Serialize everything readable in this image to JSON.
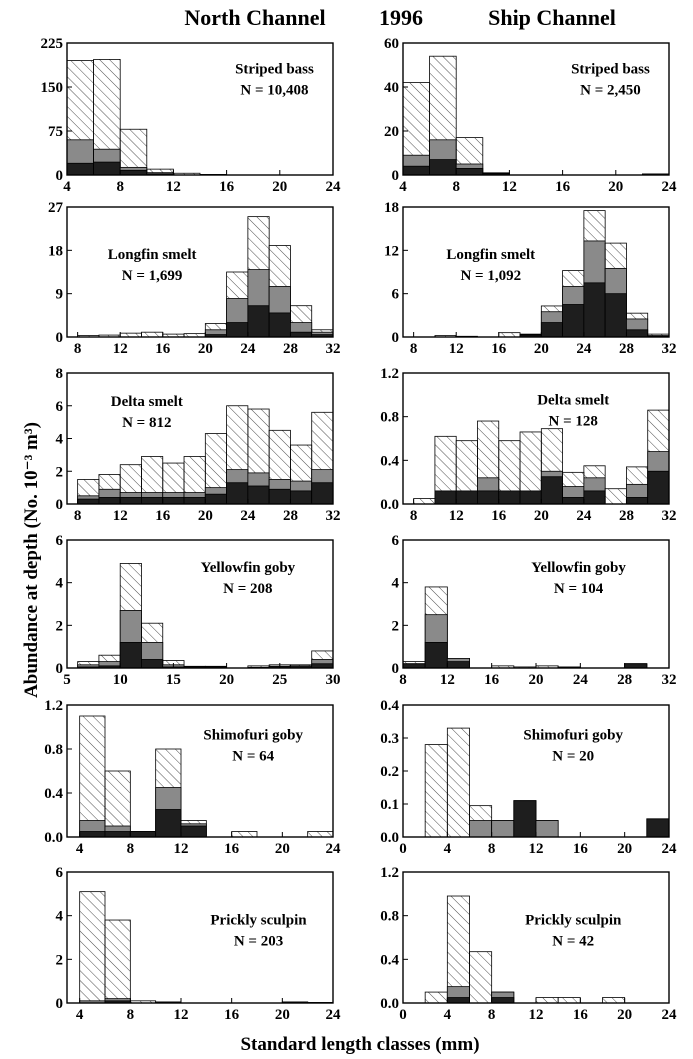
{
  "header": {
    "left": "North Channel",
    "center": "1996",
    "right": "Ship Channel"
  },
  "ylabel": "Abundance at depth (No. 10⁻³ m³)",
  "xlabel": "Standard length classes (mm)",
  "colors": {
    "hatched": "#ffffff",
    "gray": "#8a8a8a",
    "black": "#1e1e1e",
    "outline": "#000000"
  },
  "legend_note": "Stacked bars: black (bottom), gray (middle), hatched (top) segments",
  "chart_data": [
    {
      "type": "bar",
      "panel": "North Channel",
      "species": "Striped bass",
      "n_label": "N = 10,408",
      "xlim": [
        4,
        24
      ],
      "xticks": [
        4,
        8,
        12,
        16,
        20,
        24
      ],
      "ylim": [
        0,
        225
      ],
      "yticks": [
        0,
        75,
        150,
        225
      ],
      "ytick_labels": [
        "0",
        "75",
        "150",
        "225"
      ],
      "bin_width": 2,
      "bins": [
        {
          "x": 5,
          "black": 20,
          "gray": 40,
          "total": 195
        },
        {
          "x": 7,
          "black": 22,
          "gray": 22,
          "total": 197
        },
        {
          "x": 9,
          "black": 8,
          "gray": 5,
          "total": 78
        },
        {
          "x": 11,
          "black": 2,
          "gray": 2,
          "total": 10
        },
        {
          "x": 13,
          "black": 0,
          "gray": 0,
          "total": 3
        },
        {
          "x": 15,
          "black": 0,
          "gray": 0,
          "total": 1
        }
      ]
    },
    {
      "type": "bar",
      "panel": "Ship Channel",
      "species": "Striped bass",
      "n_label": "N = 2,450",
      "xlim": [
        4,
        24
      ],
      "xticks": [
        4,
        8,
        12,
        16,
        20,
        24
      ],
      "ylim": [
        0,
        60
      ],
      "yticks": [
        0,
        20,
        40,
        60
      ],
      "ytick_labels": [
        "0",
        "20",
        "40",
        "60"
      ],
      "bin_width": 2,
      "bins": [
        {
          "x": 5,
          "black": 4,
          "gray": 5,
          "total": 42
        },
        {
          "x": 7,
          "black": 7,
          "gray": 9,
          "total": 54
        },
        {
          "x": 9,
          "black": 3,
          "gray": 2,
          "total": 17
        },
        {
          "x": 11,
          "black": 0.5,
          "gray": 0.3,
          "total": 1
        },
        {
          "x": 23,
          "black": 0.5,
          "gray": 0,
          "total": 0.5
        }
      ]
    },
    {
      "type": "bar",
      "panel": "North Channel",
      "species": "Longfin smelt",
      "n_label": "N = 1,699",
      "xlim": [
        7,
        32
      ],
      "xticks": [
        8,
        12,
        16,
        20,
        24,
        28,
        32
      ],
      "ylim": [
        0,
        27
      ],
      "yticks": [
        0,
        9,
        18,
        27
      ],
      "ytick_labels": [
        "0",
        "9",
        "18",
        "27"
      ],
      "bin_width": 2,
      "bins": [
        {
          "x": 9,
          "black": 0,
          "gray": 0,
          "total": 0.3
        },
        {
          "x": 11,
          "black": 0,
          "gray": 0,
          "total": 0.4
        },
        {
          "x": 13,
          "black": 0,
          "gray": 0,
          "total": 0.8
        },
        {
          "x": 15,
          "black": 0,
          "gray": 0,
          "total": 1.0
        },
        {
          "x": 17,
          "black": 0,
          "gray": 0,
          "total": 0.6
        },
        {
          "x": 19,
          "black": 0,
          "gray": 0,
          "total": 0.7
        },
        {
          "x": 21,
          "black": 0.5,
          "gray": 1.0,
          "total": 2.8
        },
        {
          "x": 23,
          "black": 3,
          "gray": 5,
          "total": 13.5
        },
        {
          "x": 25,
          "black": 6.5,
          "gray": 7.5,
          "total": 25
        },
        {
          "x": 27,
          "black": 5,
          "gray": 5.5,
          "total": 19
        },
        {
          "x": 29,
          "black": 1,
          "gray": 2,
          "total": 6.5
        },
        {
          "x": 31,
          "black": 0.5,
          "gray": 0.5,
          "total": 1.5
        }
      ]
    },
    {
      "type": "bar",
      "panel": "Ship Channel",
      "species": "Longfin smelt",
      "n_label": "N = 1,092",
      "xlim": [
        7,
        32
      ],
      "xticks": [
        8,
        12,
        16,
        20,
        24,
        28,
        32
      ],
      "ylim": [
        0,
        18
      ],
      "yticks": [
        0,
        6,
        12,
        18
      ],
      "ytick_labels": [
        "0",
        "6",
        "12",
        "18"
      ],
      "bin_width": 2,
      "bins": [
        {
          "x": 11,
          "black": 0,
          "gray": 0,
          "total": 0.2
        },
        {
          "x": 13,
          "black": 0,
          "gray": 0,
          "total": 0.1
        },
        {
          "x": 17,
          "black": 0,
          "gray": 0,
          "total": 0.6
        },
        {
          "x": 19,
          "black": 0.2,
          "gray": 0.1,
          "total": 0.4
        },
        {
          "x": 21,
          "black": 2,
          "gray": 1.5,
          "total": 4.3
        },
        {
          "x": 23,
          "black": 4.5,
          "gray": 2.5,
          "total": 9.2
        },
        {
          "x": 25,
          "black": 7.5,
          "gray": 5.8,
          "total": 17.5
        },
        {
          "x": 27,
          "black": 6,
          "gray": 3.5,
          "total": 13
        },
        {
          "x": 29,
          "black": 1,
          "gray": 1.5,
          "total": 3.3
        },
        {
          "x": 31,
          "black": 0.1,
          "gray": 0.1,
          "total": 0.4
        }
      ]
    },
    {
      "type": "bar",
      "panel": "North Channel",
      "species": "Delta smelt",
      "n_label": "N = 812",
      "xlim": [
        7,
        32
      ],
      "xticks": [
        8,
        12,
        16,
        20,
        24,
        28,
        32
      ],
      "ylim": [
        0,
        8
      ],
      "yticks": [
        0,
        2,
        4,
        6,
        8
      ],
      "ytick_labels": [
        "0",
        "2",
        "4",
        "6",
        "8"
      ],
      "bin_width": 2,
      "bins": [
        {
          "x": 9,
          "black": 0.3,
          "gray": 0.2,
          "total": 1.5
        },
        {
          "x": 11,
          "black": 0.4,
          "gray": 0.5,
          "total": 1.8
        },
        {
          "x": 13,
          "black": 0.4,
          "gray": 0.3,
          "total": 2.4
        },
        {
          "x": 15,
          "black": 0.4,
          "gray": 0.3,
          "total": 2.9
        },
        {
          "x": 17,
          "black": 0.4,
          "gray": 0.3,
          "total": 2.5
        },
        {
          "x": 19,
          "black": 0.4,
          "gray": 0.3,
          "total": 2.9
        },
        {
          "x": 21,
          "black": 0.6,
          "gray": 0.4,
          "total": 4.3
        },
        {
          "x": 23,
          "black": 1.3,
          "gray": 0.8,
          "total": 6.0
        },
        {
          "x": 25,
          "black": 1.1,
          "gray": 0.8,
          "total": 5.8
        },
        {
          "x": 27,
          "black": 0.9,
          "gray": 0.6,
          "total": 4.5
        },
        {
          "x": 29,
          "black": 0.8,
          "gray": 0.6,
          "total": 3.6
        },
        {
          "x": 31,
          "black": 1.3,
          "gray": 0.8,
          "total": 5.6
        }
      ]
    },
    {
      "type": "bar",
      "panel": "Ship Channel",
      "species": "Delta smelt",
      "n_label": "N = 128",
      "xlim": [
        7,
        32
      ],
      "xticks": [
        8,
        12,
        16,
        20,
        24,
        28,
        32
      ],
      "ylim": [
        0,
        1.2
      ],
      "yticks": [
        0,
        0.4,
        0.8,
        1.2
      ],
      "ytick_labels": [
        "0.0",
        "0.4",
        "0.8",
        "1.2"
      ],
      "bin_width": 2,
      "bins": [
        {
          "x": 9,
          "black": 0,
          "gray": 0,
          "total": 0.05
        },
        {
          "x": 11,
          "black": 0.12,
          "gray": 0,
          "total": 0.62
        },
        {
          "x": 13,
          "black": 0.12,
          "gray": 0,
          "total": 0.58
        },
        {
          "x": 15,
          "black": 0.12,
          "gray": 0.12,
          "total": 0.76
        },
        {
          "x": 17,
          "black": 0.12,
          "gray": 0,
          "total": 0.58
        },
        {
          "x": 19,
          "black": 0.12,
          "gray": 0,
          "total": 0.66
        },
        {
          "x": 21,
          "black": 0.25,
          "gray": 0.05,
          "total": 0.69
        },
        {
          "x": 23,
          "black": 0.06,
          "gray": 0.1,
          "total": 0.29
        },
        {
          "x": 25,
          "black": 0.12,
          "gray": 0.12,
          "total": 0.35
        },
        {
          "x": 27,
          "black": 0,
          "gray": 0,
          "total": 0.14
        },
        {
          "x": 29,
          "black": 0.06,
          "gray": 0.12,
          "total": 0.34
        },
        {
          "x": 31,
          "black": 0.3,
          "gray": 0.18,
          "total": 0.86
        }
      ]
    },
    {
      "type": "bar",
      "panel": "North Channel",
      "species": "Yellowfin goby",
      "n_label": "N = 208",
      "xlim": [
        5,
        30
      ],
      "xticks": [
        5,
        10,
        15,
        20,
        25,
        30
      ],
      "ylim": [
        0,
        6
      ],
      "yticks": [
        0,
        2,
        4,
        6
      ],
      "ytick_labels": [
        "0",
        "2",
        "4",
        "6"
      ],
      "bin_width": 2,
      "bins": [
        {
          "x": 7,
          "black": 0.05,
          "gray": 0.1,
          "total": 0.3
        },
        {
          "x": 9,
          "black": 0.1,
          "gray": 0.2,
          "total": 0.6
        },
        {
          "x": 11,
          "black": 1.2,
          "gray": 1.5,
          "total": 4.9
        },
        {
          "x": 13,
          "black": 0.4,
          "gray": 0.8,
          "total": 2.1
        },
        {
          "x": 15,
          "black": 0.05,
          "gray": 0.1,
          "total": 0.35
        },
        {
          "x": 17,
          "black": 0.05,
          "gray": 0,
          "total": 0.08
        },
        {
          "x": 19,
          "black": 0.05,
          "gray": 0,
          "total": 0.08
        },
        {
          "x": 23,
          "black": 0.03,
          "gray": 0,
          "total": 0.1
        },
        {
          "x": 25,
          "black": 0.08,
          "gray": 0,
          "total": 0.15
        },
        {
          "x": 27,
          "black": 0.1,
          "gray": 0,
          "total": 0.15
        },
        {
          "x": 29,
          "black": 0.2,
          "gray": 0.2,
          "total": 0.8
        }
      ]
    },
    {
      "type": "bar",
      "panel": "Ship Channel",
      "species": "Yellowfin goby",
      "n_label": "N = 104",
      "xlim": [
        8,
        32
      ],
      "xticks": [
        8,
        12,
        16,
        20,
        24,
        28,
        32
      ],
      "ylim": [
        0,
        6
      ],
      "yticks": [
        0,
        2,
        4,
        6
      ],
      "ytick_labels": [
        "0",
        "2",
        "4",
        "6"
      ],
      "bin_width": 2,
      "bins": [
        {
          "x": 9,
          "black": 0.2,
          "gray": 0,
          "total": 0.3
        },
        {
          "x": 11,
          "black": 1.2,
          "gray": 1.3,
          "total": 3.8
        },
        {
          "x": 13,
          "black": 0.3,
          "gray": 0.15,
          "total": 0.45
        },
        {
          "x": 17,
          "black": 0,
          "gray": 0,
          "total": 0.1
        },
        {
          "x": 19,
          "black": 0,
          "gray": 0,
          "total": 0.05
        },
        {
          "x": 21,
          "black": 0,
          "gray": 0,
          "total": 0.1
        },
        {
          "x": 23,
          "black": 0.03,
          "gray": 0,
          "total": 0.05
        },
        {
          "x": 29,
          "black": 0.2,
          "gray": 0,
          "total": 0.2
        }
      ]
    },
    {
      "type": "bar",
      "panel": "North Channel",
      "species": "Shimofuri goby",
      "n_label": "N = 64",
      "xlim": [
        3,
        24
      ],
      "xticks": [
        4,
        8,
        12,
        16,
        20,
        24
      ],
      "ylim": [
        0,
        1.2
      ],
      "yticks": [
        0,
        0.4,
        0.8,
        1.2
      ],
      "ytick_labels": [
        "0.0",
        "0.4",
        "0.8",
        "1.2"
      ],
      "bin_width": 2,
      "bins": [
        {
          "x": 5,
          "black": 0.05,
          "gray": 0.1,
          "total": 1.1
        },
        {
          "x": 7,
          "black": 0.05,
          "gray": 0.05,
          "total": 0.6
        },
        {
          "x": 9,
          "black": 0.05,
          "gray": 0,
          "total": 0.05
        },
        {
          "x": 11,
          "black": 0.25,
          "gray": 0.2,
          "total": 0.8
        },
        {
          "x": 13,
          "black": 0.1,
          "gray": 0.02,
          "total": 0.15
        },
        {
          "x": 17,
          "black": 0,
          "gray": 0,
          "total": 0.05
        },
        {
          "x": 23,
          "black": 0,
          "gray": 0,
          "total": 0.05
        }
      ]
    },
    {
      "type": "bar",
      "panel": "Ship Channel",
      "species": "Shimofuri goby",
      "n_label": "N = 20",
      "xlim": [
        0,
        24
      ],
      "xticks": [
        0,
        4,
        8,
        12,
        16,
        20,
        24
      ],
      "ylim": [
        0,
        0.4
      ],
      "yticks": [
        0,
        0.1,
        0.2,
        0.3,
        0.4
      ],
      "ytick_labels": [
        "0.0",
        "0.1",
        "0.2",
        "0.3",
        "0.4"
      ],
      "bin_width": 2,
      "bins": [
        {
          "x": 3,
          "black": 0,
          "gray": 0,
          "total": 0.28
        },
        {
          "x": 5,
          "black": 0,
          "gray": 0,
          "total": 0.33
        },
        {
          "x": 7,
          "black": 0,
          "gray": 0.05,
          "total": 0.095
        },
        {
          "x": 9,
          "black": 0,
          "gray": 0.05,
          "total": 0.05
        },
        {
          "x": 11,
          "black": 0.11,
          "gray": 0,
          "total": 0.11
        },
        {
          "x": 13,
          "black": 0,
          "gray": 0.05,
          "total": 0.05
        },
        {
          "x": 23,
          "black": 0.055,
          "gray": 0,
          "total": 0.055
        }
      ]
    },
    {
      "type": "bar",
      "panel": "North Channel",
      "species": "Prickly sculpin",
      "n_label": "N = 203",
      "xlim": [
        3,
        24
      ],
      "xticks": [
        4,
        8,
        12,
        16,
        20,
        24
      ],
      "ylim": [
        0,
        6
      ],
      "yticks": [
        0,
        2,
        4,
        6
      ],
      "ytick_labels": [
        "0",
        "2",
        "4",
        "6"
      ],
      "bin_width": 2,
      "bins": [
        {
          "x": 5,
          "black": 0,
          "gray": 0.1,
          "total": 5.1
        },
        {
          "x": 7,
          "black": 0.1,
          "gray": 0.1,
          "total": 3.8
        },
        {
          "x": 9,
          "black": 0,
          "gray": 0,
          "total": 0.1
        },
        {
          "x": 11,
          "black": 0.05,
          "gray": 0,
          "total": 0.05
        },
        {
          "x": 21,
          "black": 0.05,
          "gray": 0,
          "total": 0.05
        },
        {
          "x": 23,
          "black": 0.02,
          "gray": 0,
          "total": 0.02
        }
      ]
    },
    {
      "type": "bar",
      "panel": "Ship Channel",
      "species": "Prickly sculpin",
      "n_label": "N = 42",
      "xlim": [
        0,
        24
      ],
      "xticks": [
        0,
        4,
        8,
        12,
        16,
        20,
        24
      ],
      "ylim": [
        0,
        1.2
      ],
      "yticks": [
        0,
        0.4,
        0.8,
        1.2
      ],
      "ytick_labels": [
        "0.0",
        "0.4",
        "0.8",
        "1.2"
      ],
      "bin_width": 2,
      "bins": [
        {
          "x": 3,
          "black": 0,
          "gray": 0,
          "total": 0.1
        },
        {
          "x": 5,
          "black": 0.05,
          "gray": 0.1,
          "total": 0.98
        },
        {
          "x": 7,
          "black": 0,
          "gray": 0,
          "total": 0.47
        },
        {
          "x": 9,
          "black": 0.05,
          "gray": 0.05,
          "total": 0.1
        },
        {
          "x": 13,
          "black": 0,
          "gray": 0,
          "total": 0.05
        },
        {
          "x": 15,
          "black": 0,
          "gray": 0,
          "total": 0.05
        },
        {
          "x": 19,
          "black": 0,
          "gray": 0,
          "total": 0.05
        }
      ]
    }
  ]
}
